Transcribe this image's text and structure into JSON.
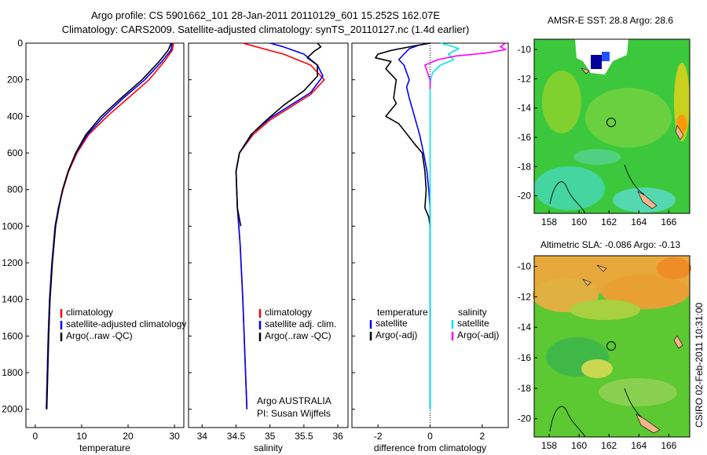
{
  "title_line1": "Argo profile: CS 5901662_101 28-Jan-2011 20110129_601 15.252S 162.07E",
  "title_line2": "Climatology: CARS2009. Satellite-adjusted climatology: synTS_20110127.nc (1.4d earlier)",
  "colors": {
    "climatology": "#ff0000",
    "satellite": "#0000ff",
    "argo": "#000000",
    "sal_satellite": "#00e5ee",
    "sal_argo": "#ff00ff"
  },
  "side_text": "CSIRO 02-Feb-2011 10:31:00",
  "chart_data": [
    {
      "id": "temperature",
      "type": "line",
      "xlabel": "temperature",
      "ylabel": "",
      "xlim": [
        -2,
        32
      ],
      "ylim": [
        2100,
        0
      ],
      "xticks": [
        0,
        10,
        20,
        30
      ],
      "yticks": [
        0,
        200,
        400,
        600,
        800,
        1000,
        1200,
        1400,
        1600,
        1800,
        2000
      ],
      "legend": {
        "entries": [
          "climatology",
          "satellite-adjusted climatology",
          "Argo(..raw -QC)"
        ]
      },
      "series": [
        {
          "name": "climatology",
          "color": "#ff0000",
          "points": [
            [
              29.8,
              0
            ],
            [
              29.5,
              40
            ],
            [
              27.8,
              100
            ],
            [
              24.5,
              200
            ],
            [
              20.0,
              300
            ],
            [
              15.5,
              400
            ],
            [
              11.5,
              500
            ],
            [
              9.0,
              600
            ],
            [
              7.2,
              700
            ],
            [
              6.0,
              800
            ],
            [
              5.0,
              900
            ],
            [
              4.3,
              1000
            ],
            [
              3.6,
              1200
            ],
            [
              3.1,
              1400
            ],
            [
              2.8,
              1600
            ],
            [
              2.6,
              1800
            ],
            [
              2.4,
              2000
            ]
          ]
        },
        {
          "name": "satellite-adjusted climatology",
          "color": "#0000ff",
          "points": [
            [
              29.5,
              0
            ],
            [
              29.2,
              40
            ],
            [
              27.3,
              100
            ],
            [
              23.6,
              200
            ],
            [
              19.0,
              300
            ],
            [
              14.8,
              400
            ],
            [
              11.2,
              500
            ],
            [
              8.8,
              600
            ],
            [
              7.1,
              700
            ],
            [
              5.9,
              800
            ],
            [
              5.0,
              900
            ],
            [
              4.3,
              1000
            ],
            [
              3.6,
              1200
            ],
            [
              3.1,
              1400
            ],
            [
              2.8,
              1600
            ],
            [
              2.6,
              1800
            ],
            [
              2.4,
              2000
            ]
          ]
        },
        {
          "name": "Argo(..raw -QC)",
          "color": "#000000",
          "points": [
            [
              29.3,
              0
            ],
            [
              28.6,
              40
            ],
            [
              26.7,
              100
            ],
            [
              23.0,
              200
            ],
            [
              18.5,
              300
            ],
            [
              14.2,
              400
            ],
            [
              10.9,
              500
            ],
            [
              8.7,
              600
            ],
            [
              7.1,
              700
            ],
            [
              5.9,
              800
            ],
            [
              5.1,
              900
            ],
            [
              4.4,
              1000
            ],
            [
              3.7,
              1200
            ],
            [
              3.2,
              1400
            ],
            [
              2.9,
              1600
            ],
            [
              2.7,
              1800
            ],
            [
              2.5,
              2000
            ]
          ]
        }
      ]
    },
    {
      "id": "salinity",
      "type": "line",
      "xlabel": "salinity",
      "ylabel": "",
      "xlim": [
        33.8,
        36.15
      ],
      "ylim": [
        2100,
        0
      ],
      "xticks": [
        34,
        34.5,
        35,
        35.5,
        36
      ],
      "legend": {
        "entries": [
          "climatology",
          "satellite adj. clim.",
          "Argo(..raw -QC)"
        ]
      },
      "annotation": {
        "line1": "Argo AUSTRALIA",
        "line2": "PI: Susan Wijffels"
      },
      "series": [
        {
          "name": "climatology",
          "color": "#ff0000",
          "points": [
            [
              34.6,
              0
            ],
            [
              34.8,
              20
            ],
            [
              35.2,
              60
            ],
            [
              35.6,
              120
            ],
            [
              35.8,
              200
            ],
            [
              35.6,
              280
            ],
            [
              35.3,
              350
            ],
            [
              35.0,
              420
            ],
            [
              34.75,
              500
            ],
            [
              34.55,
              600
            ],
            [
              34.5,
              700
            ],
            [
              34.52,
              900
            ],
            [
              34.56,
              1100
            ],
            [
              34.6,
              1400
            ],
            [
              34.63,
              1700
            ],
            [
              34.66,
              2000
            ]
          ]
        },
        {
          "name": "satellite adj. clim.",
          "color": "#0000ff",
          "points": [
            [
              35.0,
              0
            ],
            [
              35.2,
              20
            ],
            [
              35.5,
              60
            ],
            [
              35.7,
              120
            ],
            [
              35.78,
              180
            ],
            [
              35.6,
              270
            ],
            [
              35.3,
              340
            ],
            [
              35.0,
              410
            ],
            [
              34.75,
              490
            ],
            [
              34.55,
              600
            ],
            [
              34.5,
              700
            ],
            [
              34.52,
              900
            ],
            [
              34.56,
              1100
            ],
            [
              34.6,
              1400
            ],
            [
              34.63,
              1700
            ],
            [
              34.66,
              2000
            ]
          ]
        },
        {
          "name": "Argo(..raw -QC)",
          "color": "#000000",
          "points": [
            [
              35.7,
              0
            ],
            [
              35.75,
              20
            ],
            [
              35.65,
              45
            ],
            [
              35.55,
              80
            ],
            [
              35.7,
              120
            ],
            [
              35.7,
              180
            ],
            [
              35.5,
              260
            ],
            [
              35.2,
              340
            ],
            [
              34.95,
              420
            ],
            [
              34.72,
              500
            ],
            [
              34.55,
              600
            ],
            [
              34.5,
              700
            ],
            [
              34.52,
              900
            ],
            [
              34.57,
              1000
            ]
          ]
        }
      ]
    },
    {
      "id": "difference",
      "type": "line",
      "xlabel": "difference from climatology",
      "ylabel": "",
      "xlim": [
        -3,
        3
      ],
      "ylim": [
        2100,
        0
      ],
      "xticks": [
        -2,
        0,
        2
      ],
      "zero_line": 0,
      "legend": {
        "headers": [
          "temperature",
          "salinity"
        ],
        "entries": [
          "satellite",
          "Argo(-adj)",
          "satellite",
          "Argo(-adj)"
        ]
      },
      "series": [
        {
          "name": "temperature satellite",
          "color": "#0000ff",
          "points": [
            [
              0,
              0
            ],
            [
              -0.4,
              10
            ],
            [
              -0.8,
              30
            ],
            [
              -1.0,
              60
            ],
            [
              -1.2,
              90
            ],
            [
              -1.0,
              120
            ],
            [
              -0.9,
              160
            ],
            [
              -0.8,
              200
            ],
            [
              -0.9,
              240
            ],
            [
              -0.8,
              300
            ],
            [
              -0.6,
              400
            ],
            [
              -0.4,
              500
            ],
            [
              -0.25,
              600
            ],
            [
              -0.12,
              700
            ],
            [
              -0.05,
              800
            ],
            [
              0,
              900
            ],
            [
              0,
              2000
            ]
          ]
        },
        {
          "name": "temperature Argo(-adj)",
          "color": "#000000",
          "points": [
            [
              0,
              0
            ],
            [
              -0.6,
              15
            ],
            [
              -1.5,
              40
            ],
            [
              -2.0,
              60
            ],
            [
              -2.1,
              80
            ],
            [
              -1.5,
              100
            ],
            [
              -1.7,
              140
            ],
            [
              -1.3,
              200
            ],
            [
              -1.4,
              300
            ],
            [
              -1.3,
              330
            ],
            [
              -1.7,
              400
            ],
            [
              -1.2,
              440
            ],
            [
              -0.6,
              550
            ],
            [
              -0.3,
              600
            ],
            [
              -0.2,
              700
            ],
            [
              -0.15,
              800
            ],
            [
              -0.2,
              900
            ],
            [
              -0.05,
              950
            ],
            [
              0,
              1000
            ]
          ]
        },
        {
          "name": "salinity satellite",
          "color": "#00e5ee",
          "points": [
            [
              0.4,
              0
            ],
            [
              0.8,
              15
            ],
            [
              1.1,
              30
            ],
            [
              0.7,
              60
            ],
            [
              0.9,
              90
            ],
            [
              0.4,
              120
            ],
            [
              0.1,
              160
            ],
            [
              0.02,
              200
            ],
            [
              0,
              250
            ],
            [
              0,
              2000
            ]
          ]
        },
        {
          "name": "salinity Argo(-adj)",
          "color": "#ff00ff",
          "points": [
            [
              2.9,
              0
            ],
            [
              2.7,
              20
            ],
            [
              2.9,
              35
            ],
            [
              2.1,
              55
            ],
            [
              1.0,
              70
            ],
            [
              0.3,
              90
            ],
            [
              -0.2,
              120
            ],
            [
              -0.1,
              160
            ],
            [
              0,
              200
            ],
            [
              0,
              250
            ]
          ]
        }
      ]
    },
    {
      "id": "sst_map",
      "type": "heatmap",
      "title": "AMSR-E SST: 28.8 Argo: 28.6",
      "xlim": [
        157,
        167.4
      ],
      "ylim": [
        -21.2,
        -9.3
      ],
      "xticks": [
        158,
        160,
        162,
        164,
        166
      ],
      "yticks": [
        -10,
        -12,
        -14,
        -16,
        -18,
        -20
      ],
      "profile_location": [
        162.07,
        -15.25
      ]
    },
    {
      "id": "sla_map",
      "type": "heatmap",
      "title": "Altimetric SLA: -0.086 Argo: -0.13",
      "xlim": [
        157,
        167.4
      ],
      "ylim": [
        -21.2,
        -9.3
      ],
      "xticks": [
        158,
        160,
        162,
        164,
        166
      ],
      "yticks": [
        -10,
        -12,
        -14,
        -16,
        -18,
        -20
      ],
      "profile_location": [
        162.07,
        -15.25
      ]
    }
  ]
}
